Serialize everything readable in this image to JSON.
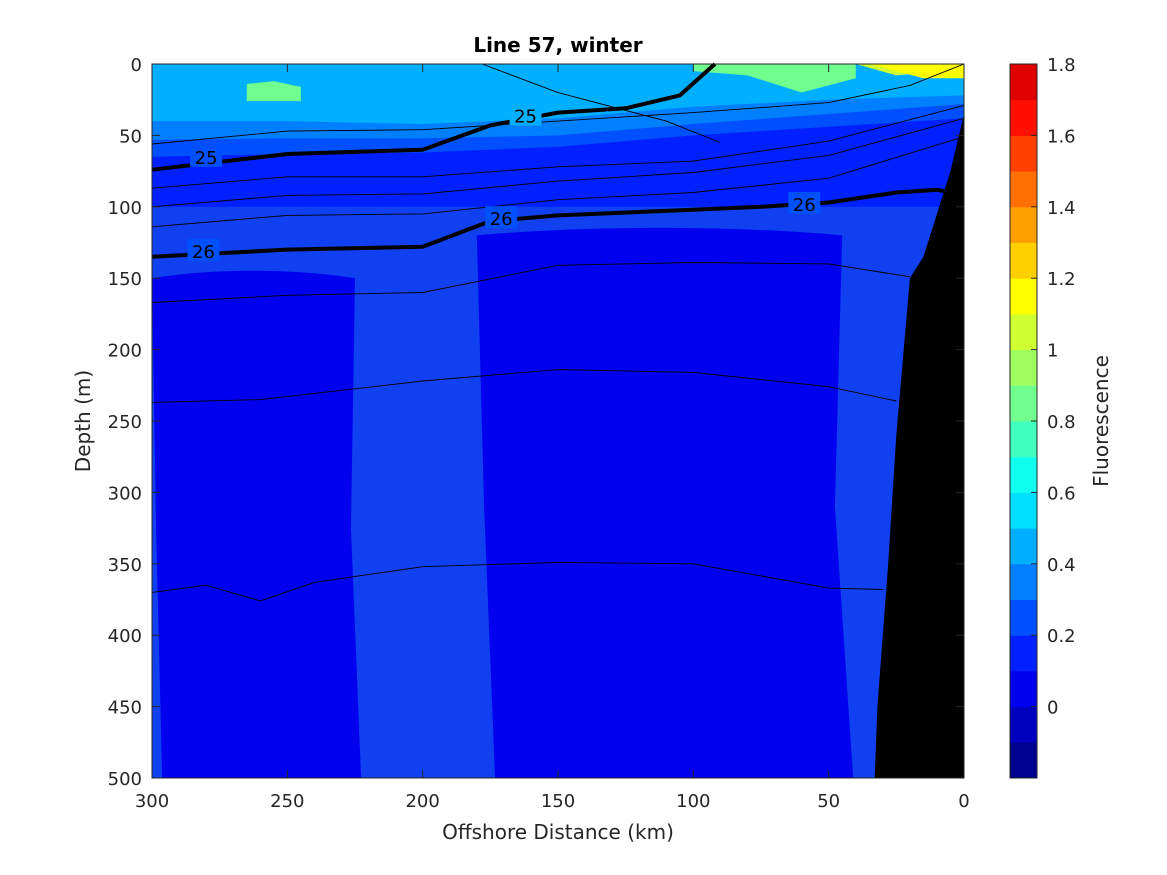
{
  "chart_data": {
    "type": "heatmap",
    "title": "Line 57, winter",
    "xlabel": "Offshore Distance (km)",
    "ylabel": "Depth (m)",
    "colorbar_label": "Fluorescence",
    "xlim": [
      300,
      0
    ],
    "ylim": [
      500,
      0
    ],
    "x_reversed": true,
    "y_reversed": true,
    "xticks": [
      "300",
      "250",
      "200",
      "150",
      "100",
      "50",
      "0"
    ],
    "yticks": [
      "0",
      "50",
      "100",
      "150",
      "200",
      "250",
      "300",
      "350",
      "400",
      "450",
      "500"
    ],
    "colorbar_ticks": [
      "0",
      "0.2",
      "0.4",
      "0.6",
      "0.8",
      "1",
      "1.2",
      "1.4",
      "1.6",
      "1.8"
    ],
    "colorbar_levels": [
      -0.2,
      -0.1,
      0,
      0.1,
      0.2,
      0.3,
      0.4,
      0.5,
      0.6,
      0.7,
      0.8,
      0.9,
      1.0,
      1.1,
      1.2,
      1.3,
      1.4,
      1.5,
      1.6,
      1.7,
      1.8
    ],
    "colormap": [
      "#00008f",
      "#0000bf",
      "#0000ef",
      "#0020ff",
      "#0050ff",
      "#0080ff",
      "#00afff",
      "#00dfff",
      "#10ffef",
      "#40ffbf",
      "#70ff8f",
      "#9fff60",
      "#cfff30",
      "#ffff00",
      "#ffcf00",
      "#ff9f00",
      "#ff7000",
      "#ff4000",
      "#ff1000",
      "#df0000",
      "#af0000"
    ],
    "fluorescence_layers": [
      {
        "level": 0.8,
        "x": [
          265,
          255,
          245
        ],
        "depth": [
          20,
          20,
          20
        ]
      },
      {
        "level": 0.6,
        "x": [
          300,
          250,
          200,
          150,
          100,
          50,
          0
        ],
        "depth": [
          0,
          0,
          0,
          0,
          0,
          0,
          0
        ]
      },
      {
        "level": 0.4,
        "x": [
          300,
          250,
          200,
          150,
          100,
          50,
          0
        ],
        "depth": [
          40,
          40,
          42,
          38,
          30,
          25,
          22
        ]
      },
      {
        "level": 0.3,
        "x": [
          300,
          250,
          200,
          150,
          100,
          50,
          0
        ],
        "depth": [
          53,
          52,
          52,
          50,
          42,
          35,
          28
        ]
      },
      {
        "level": 0.2,
        "x": [
          300,
          250,
          200,
          150,
          100,
          50,
          0
        ],
        "depth": [
          65,
          63,
          62,
          58,
          50,
          44,
          38
        ]
      },
      {
        "level": 0.1,
        "x": [
          300,
          250,
          200,
          150,
          100,
          50,
          0
        ],
        "depth": [
          100,
          100,
          100,
          100,
          100,
          100,
          100
        ]
      }
    ],
    "surface_bloom": [
      {
        "level": 0.8,
        "x": [
          100,
          80,
          60,
          40
        ],
        "depth": [
          5,
          8,
          20,
          10
        ]
      },
      {
        "level": 1.0,
        "x": [
          40,
          25,
          10
        ],
        "depth": [
          0,
          8,
          5
        ]
      },
      {
        "level": 1.1,
        "x": [
          35,
          15,
          0
        ],
        "depth": [
          0,
          10,
          10
        ]
      }
    ],
    "low_fluorescence_columns": [
      {
        "level": 0,
        "x_range": [
          300,
          225
        ],
        "depth_range": [
          150,
          500
        ]
      },
      {
        "level": 0,
        "x_range": [
          180,
          45
        ],
        "depth_range": [
          120,
          500
        ]
      }
    ],
    "density_contours": [
      {
        "label": "25",
        "bold": true,
        "x": [
          300,
          250,
          200,
          175,
          150,
          125,
          105,
          95,
          92
        ],
        "depth": [
          74,
          63,
          60,
          43,
          34,
          31,
          22,
          5,
          0
        ]
      },
      {
        "label": "26",
        "bold": true,
        "x": [
          300,
          250,
          200,
          175,
          150,
          100,
          75,
          50,
          25,
          10,
          5
        ],
        "depth": [
          135,
          130,
          128,
          110,
          106,
          102,
          100,
          97,
          90,
          88,
          90
        ]
      },
      {
        "label": "",
        "bold": false,
        "x": [
          178,
          150,
          110,
          90
        ],
        "depth": [
          0,
          20,
          40,
          55
        ]
      },
      {
        "label": "",
        "bold": false,
        "x": [
          300,
          250,
          200,
          150,
          100,
          50,
          20,
          0
        ],
        "depth": [
          56,
          47,
          46,
          40,
          34,
          27,
          15,
          0
        ]
      },
      {
        "label": "",
        "bold": false,
        "x": [
          300,
          250,
          200,
          150,
          100,
          50,
          0
        ],
        "depth": [
          87,
          79,
          79,
          72,
          68,
          54,
          29
        ]
      },
      {
        "label": "",
        "bold": false,
        "x": [
          300,
          250,
          200,
          150,
          100,
          50,
          0
        ],
        "depth": [
          100,
          92,
          91,
          82,
          76,
          64,
          38
        ]
      },
      {
        "label": "",
        "bold": false,
        "x": [
          300,
          250,
          200,
          150,
          100,
          50,
          2
        ],
        "depth": [
          114,
          106,
          105,
          95,
          90,
          80,
          52
        ]
      },
      {
        "label": "",
        "bold": false,
        "x": [
          300,
          250,
          200,
          150,
          100,
          50,
          20
        ],
        "depth": [
          167,
          162,
          160,
          141,
          139,
          140,
          149
        ]
      },
      {
        "label": "",
        "bold": false,
        "x": [
          300,
          260,
          200,
          150,
          100,
          50,
          25
        ],
        "depth": [
          237,
          235,
          222,
          214,
          216,
          226,
          236
        ]
      },
      {
        "label": "",
        "bold": false,
        "x": [
          300,
          280,
          260,
          240,
          200,
          150,
          100,
          50,
          30
        ],
        "depth": [
          370,
          365,
          376,
          363,
          352,
          349,
          350,
          367,
          368
        ]
      }
    ],
    "bottom_topography": {
      "x": [
        0,
        5,
        15,
        20,
        25,
        28,
        32,
        33,
        0
      ],
      "depth": [
        35,
        75,
        135,
        150,
        260,
        350,
        450,
        500,
        500
      ]
    }
  }
}
